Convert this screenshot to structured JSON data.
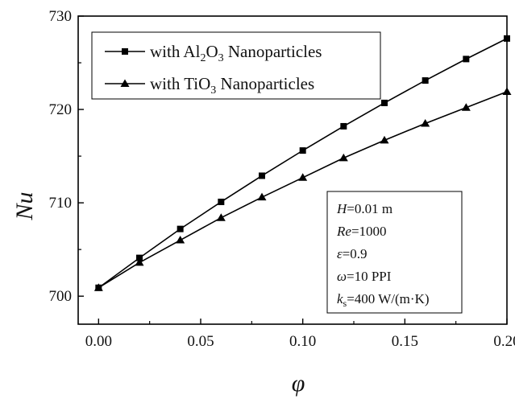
{
  "chart_data": {
    "type": "line",
    "xlabel": "φ",
    "ylabel": "Nu",
    "xlim": [
      -0.01,
      0.2
    ],
    "ylim": [
      697,
      730
    ],
    "x_ticks": [
      "0.00",
      "0.05",
      "0.10",
      "0.15",
      "0.20"
    ],
    "y_ticks": [
      "700",
      "710",
      "720",
      "730"
    ],
    "x": [
      0.0,
      0.02,
      0.04,
      0.06,
      0.08,
      0.1,
      0.12,
      0.14,
      0.16,
      0.18,
      0.2
    ],
    "series": [
      {
        "name": "with Al2O3 Nanoparticles",
        "label_parts": [
          "with Al",
          "2",
          "O",
          "3",
          " Nanoparticles"
        ],
        "marker": "square",
        "values": [
          700.9,
          704.1,
          707.2,
          710.1,
          712.9,
          715.6,
          718.2,
          720.7,
          723.1,
          725.4,
          727.6
        ]
      },
      {
        "name": "with TiO3 Nanoparticles",
        "label_parts": [
          "with TiO",
          "3",
          " Nanoparticles"
        ],
        "marker": "triangle",
        "values": [
          700.9,
          703.6,
          706.0,
          708.4,
          710.6,
          712.7,
          714.8,
          716.7,
          718.5,
          720.2,
          721.9
        ]
      }
    ],
    "legend_position": "top-left",
    "annotation": [
      {
        "italic": "H",
        "rest": "=0.01 m"
      },
      {
        "italic": "Re",
        "rest": "=1000"
      },
      {
        "italic": "ε",
        "rest": "=0.9"
      },
      {
        "italic": "ω",
        "rest": "=10 PPI"
      },
      {
        "italic": "k",
        "sub": "s",
        "rest": "=400 W/(m·K)"
      }
    ],
    "colors": {
      "line": "#000000",
      "axis": "#000000"
    }
  }
}
